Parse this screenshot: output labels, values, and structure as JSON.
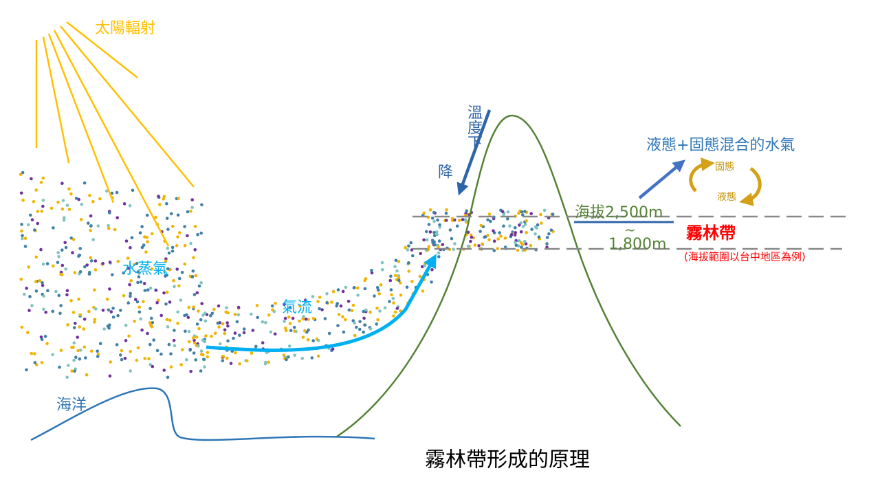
{
  "labels": {
    "solar_radiation": "太陽輻射",
    "water_vapor": "水蒸氣",
    "airflow": "氣流",
    "ocean": "海洋",
    "temperature_drop": [
      "溫度下",
      "降"
    ],
    "mixed_water": "液態+固態混合的水氣",
    "solid": "固態",
    "liquid": "液態",
    "upper_altitude": "海拔2,500m",
    "tilde": "~",
    "lower_altitude": "1,800m",
    "cloud_forest": "霧林帶",
    "cloud_forest_note": "(海拔範圍以台中地區為例)"
  },
  "title": "霧林帶形成的原理"
}
